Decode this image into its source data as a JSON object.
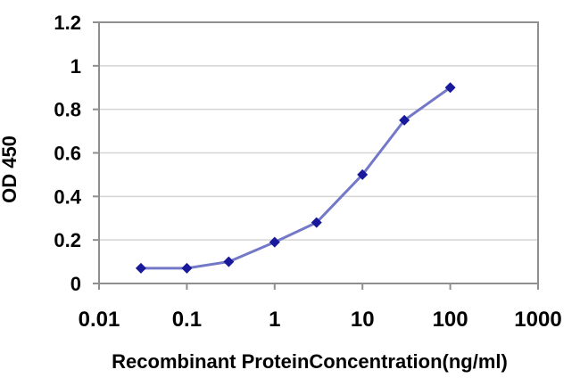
{
  "chart_data": {
    "type": "line",
    "title": "",
    "xlabel": "Recombinant ProteinConcentration(ng/ml)",
    "ylabel": "OD 450",
    "x_scale": "log",
    "xlim": [
      0.01,
      1000
    ],
    "ylim": [
      0,
      1.2
    ],
    "x_tick_values": [
      0.01,
      0.1,
      1,
      10,
      100,
      1000
    ],
    "x_tick_labels": [
      "0.01",
      "0.1",
      "1",
      "10",
      "100",
      "1000"
    ],
    "y_tick_values": [
      0,
      0.2,
      0.4,
      0.6,
      0.8,
      1,
      1.2
    ],
    "y_tick_labels": [
      "0",
      "0.2",
      "0.4",
      "0.6",
      "0.8",
      "1",
      "1.2"
    ],
    "grid": "horizontal",
    "legend": "none",
    "series": [
      {
        "marker": "diamond",
        "x": [
          0.03,
          0.1,
          0.3,
          1,
          3,
          10,
          30,
          100
        ],
        "y": [
          0.07,
          0.07,
          0.1,
          0.19,
          0.28,
          0.5,
          0.75,
          0.9
        ]
      }
    ],
    "colors": {
      "line": "#7478c8",
      "marker": "#19199b",
      "gridline": "#d4d4d4",
      "axis_frame": "#8f8f8f",
      "text": "#000000",
      "background": "#ffffff"
    }
  }
}
